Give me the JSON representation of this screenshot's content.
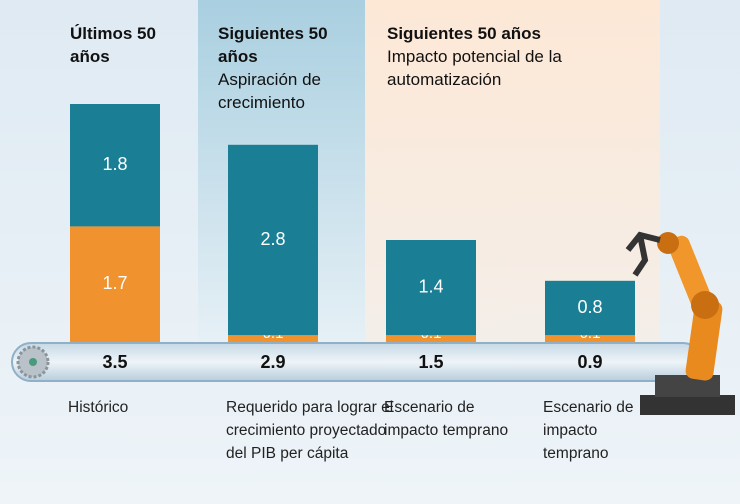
{
  "chart_data": {
    "type": "stacked_bar",
    "groups": [
      {
        "title": "Últimos 50 años"
      },
      {
        "title": "Siguientes 50 años",
        "subtitle": "Aspiración de crecimiento"
      },
      {
        "title": "Siguientes 50 años",
        "subtitle": "Impacto potencial de la automatización"
      }
    ],
    "categories": [
      "Histórico",
      "Requerido para lograr el crecimiento proyectado del PIB per cápita",
      "Escenario de impacto temprano",
      "Escenario de impacto temprano"
    ],
    "series": [
      {
        "color": "#f0922e",
        "values": [
          1.7,
          0.1,
          0.1,
          0.1
        ]
      },
      {
        "color": "#1a7f94",
        "values": [
          1.8,
          2.8,
          1.4,
          0.8
        ]
      }
    ],
    "totals": [
      3.5,
      2.9,
      1.5,
      0.9
    ]
  }
}
